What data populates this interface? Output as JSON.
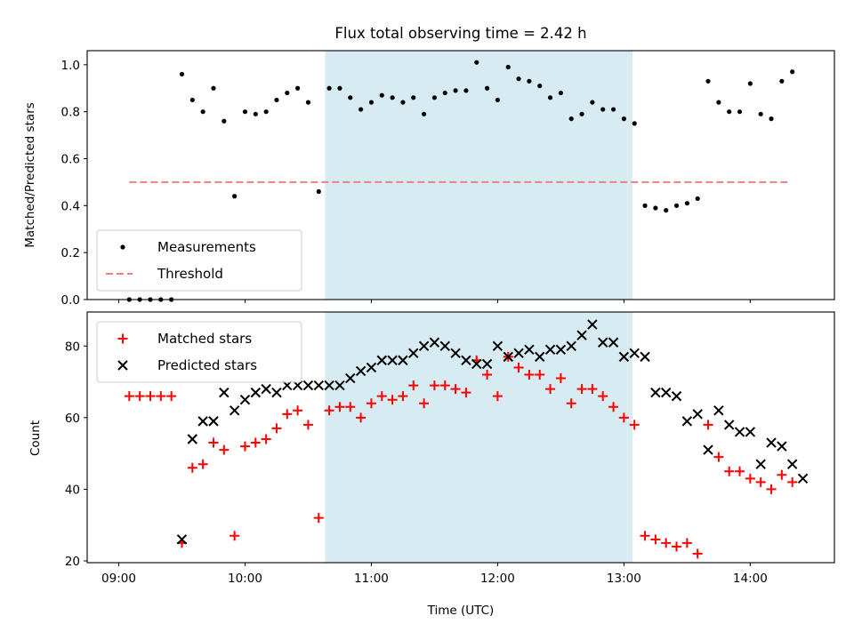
{
  "chart_data": [
    {
      "type": "scatter",
      "title": "Flux total observing time = 2.42 h",
      "xlabel": "",
      "ylabel": "Matched/Predicted stars",
      "ylim": [
        0,
        1.06
      ],
      "yticks": [
        0.0,
        0.2,
        0.4,
        0.6,
        0.8,
        1.0
      ],
      "ytick_labels": [
        "0.0",
        "0.2",
        "0.4",
        "0.6",
        "0.8",
        "1.0"
      ],
      "xlim": [
        "08:45",
        "14:40"
      ],
      "xticks": [
        "09:00",
        "10:00",
        "11:00",
        "12:00",
        "13:00",
        "14:00"
      ],
      "shaded_interval": {
        "start": "10:38",
        "end": "13:04",
        "color": "#add8e6",
        "opacity": 0.5
      },
      "legend": {
        "placement": "lower-left",
        "entries": [
          "Measurements",
          "Threshold"
        ]
      },
      "threshold": {
        "name": "Threshold",
        "y": 0.5,
        "x_range": [
          "09:05",
          "14:18"
        ],
        "color": "#f08080",
        "style": "dashed"
      },
      "series": [
        {
          "name": "Measurements",
          "marker": "dot",
          "color": "#000000",
          "points": [
            [
              "09:05",
              0.0
            ],
            [
              "09:10",
              0.0
            ],
            [
              "09:15",
              0.0
            ],
            [
              "09:20",
              0.0
            ],
            [
              "09:25",
              0.0
            ],
            [
              "09:30",
              0.96
            ],
            [
              "09:35",
              0.85
            ],
            [
              "09:40",
              0.8
            ],
            [
              "09:45",
              0.9
            ],
            [
              "09:50",
              0.76
            ],
            [
              "09:55",
              0.44
            ],
            [
              "10:00",
              0.8
            ],
            [
              "10:05",
              0.79
            ],
            [
              "10:10",
              0.8
            ],
            [
              "10:15",
              0.85
            ],
            [
              "10:20",
              0.88
            ],
            [
              "10:25",
              0.9
            ],
            [
              "10:30",
              0.84
            ],
            [
              "10:35",
              0.46
            ],
            [
              "10:40",
              0.9
            ],
            [
              "10:45",
              0.9
            ],
            [
              "10:50",
              0.86
            ],
            [
              "10:55",
              0.81
            ],
            [
              "11:00",
              0.84
            ],
            [
              "11:05",
              0.87
            ],
            [
              "11:10",
              0.86
            ],
            [
              "11:15",
              0.84
            ],
            [
              "11:20",
              0.86
            ],
            [
              "11:25",
              0.79
            ],
            [
              "11:30",
              0.86
            ],
            [
              "11:35",
              0.88
            ],
            [
              "11:40",
              0.89
            ],
            [
              "11:45",
              0.89
            ],
            [
              "11:50",
              1.01
            ],
            [
              "11:55",
              0.9
            ],
            [
              "12:00",
              0.85
            ],
            [
              "12:05",
              0.99
            ],
            [
              "12:10",
              0.94
            ],
            [
              "12:15",
              0.93
            ],
            [
              "12:20",
              0.91
            ],
            [
              "12:25",
              0.86
            ],
            [
              "12:30",
              0.88
            ],
            [
              "12:35",
              0.77
            ],
            [
              "12:40",
              0.79
            ],
            [
              "12:45",
              0.84
            ],
            [
              "12:50",
              0.81
            ],
            [
              "12:55",
              0.81
            ],
            [
              "13:00",
              0.77
            ],
            [
              "13:05",
              0.75
            ],
            [
              "13:10",
              0.4
            ],
            [
              "13:15",
              0.39
            ],
            [
              "13:20",
              0.38
            ],
            [
              "13:25",
              0.4
            ],
            [
              "13:30",
              0.41
            ],
            [
              "13:35",
              0.43
            ],
            [
              "13:40",
              0.93
            ],
            [
              "13:45",
              0.84
            ],
            [
              "13:50",
              0.8
            ],
            [
              "13:55",
              0.8
            ],
            [
              "14:00",
              0.92
            ],
            [
              "14:05",
              0.79
            ],
            [
              "14:10",
              0.77
            ],
            [
              "14:15",
              0.93
            ],
            [
              "14:20",
              0.97
            ]
          ]
        }
      ]
    },
    {
      "type": "scatter",
      "title": "",
      "xlabel": "Time (UTC)",
      "ylabel": "Count",
      "ylim": [
        19.5,
        89.5
      ],
      "yticks": [
        20,
        40,
        60,
        80
      ],
      "ytick_labels": [
        "20",
        "40",
        "60",
        "80"
      ],
      "xlim": [
        "08:45",
        "14:40"
      ],
      "xticks": [
        "09:00",
        "10:00",
        "11:00",
        "12:00",
        "13:00",
        "14:00"
      ],
      "xtick_labels": [
        "09:00",
        "10:00",
        "11:00",
        "12:00",
        "13:00",
        "14:00"
      ],
      "shaded_interval": {
        "start": "10:38",
        "end": "13:04",
        "color": "#add8e6",
        "opacity": 0.5
      },
      "legend": {
        "placement": "upper-left",
        "entries": [
          "Matched stars",
          "Predicted stars"
        ]
      },
      "series": [
        {
          "name": "Matched stars",
          "marker": "plus",
          "color": "#ff0000",
          "points": [
            [
              "09:05",
              66
            ],
            [
              "09:10",
              66
            ],
            [
              "09:15",
              66
            ],
            [
              "09:20",
              66
            ],
            [
              "09:25",
              66
            ],
            [
              "09:30",
              25
            ],
            [
              "09:35",
              46
            ],
            [
              "09:40",
              47
            ],
            [
              "09:45",
              53
            ],
            [
              "09:50",
              51
            ],
            [
              "09:55",
              27
            ],
            [
              "10:00",
              52
            ],
            [
              "10:05",
              53
            ],
            [
              "10:10",
              54
            ],
            [
              "10:15",
              57
            ],
            [
              "10:20",
              61
            ],
            [
              "10:25",
              62
            ],
            [
              "10:30",
              58
            ],
            [
              "10:35",
              32
            ],
            [
              "10:40",
              62
            ],
            [
              "10:45",
              63
            ],
            [
              "10:50",
              63
            ],
            [
              "10:55",
              60
            ],
            [
              "11:00",
              64
            ],
            [
              "11:05",
              66
            ],
            [
              "11:10",
              65
            ],
            [
              "11:15",
              66
            ],
            [
              "11:20",
              69
            ],
            [
              "11:25",
              64
            ],
            [
              "11:30",
              69
            ],
            [
              "11:35",
              69
            ],
            [
              "11:40",
              68
            ],
            [
              "11:45",
              67
            ],
            [
              "11:50",
              76
            ],
            [
              "11:55",
              72
            ],
            [
              "12:00",
              66
            ],
            [
              "12:05",
              77
            ],
            [
              "12:10",
              74
            ],
            [
              "12:15",
              72
            ],
            [
              "12:20",
              72
            ],
            [
              "12:25",
              68
            ],
            [
              "12:30",
              71
            ],
            [
              "12:35",
              64
            ],
            [
              "12:40",
              68
            ],
            [
              "12:45",
              68
            ],
            [
              "12:50",
              66
            ],
            [
              "12:55",
              63
            ],
            [
              "13:00",
              60
            ],
            [
              "13:05",
              58
            ],
            [
              "13:10",
              27
            ],
            [
              "13:15",
              26
            ],
            [
              "13:20",
              25
            ],
            [
              "13:25",
              24
            ],
            [
              "13:30",
              25
            ],
            [
              "13:35",
              22
            ],
            [
              "13:40",
              58
            ],
            [
              "13:45",
              49
            ],
            [
              "13:50",
              45
            ],
            [
              "13:55",
              45
            ],
            [
              "14:00",
              43
            ],
            [
              "14:05",
              42
            ],
            [
              "14:10",
              40
            ],
            [
              "14:15",
              44
            ],
            [
              "14:20",
              42
            ]
          ]
        },
        {
          "name": "Predicted stars",
          "marker": "x",
          "color": "#000000",
          "points": [
            [
              "09:30",
              26
            ],
            [
              "09:35",
              54
            ],
            [
              "09:40",
              59
            ],
            [
              "09:45",
              59
            ],
            [
              "09:50",
              67
            ],
            [
              "09:55",
              62
            ],
            [
              "10:00",
              65
            ],
            [
              "10:05",
              67
            ],
            [
              "10:10",
              68
            ],
            [
              "10:15",
              67
            ],
            [
              "10:20",
              69
            ],
            [
              "10:25",
              69
            ],
            [
              "10:30",
              69
            ],
            [
              "10:35",
              69
            ],
            [
              "10:40",
              69
            ],
            [
              "10:45",
              69
            ],
            [
              "10:50",
              71
            ],
            [
              "10:55",
              73
            ],
            [
              "11:00",
              74
            ],
            [
              "11:05",
              76
            ],
            [
              "11:10",
              76
            ],
            [
              "11:15",
              76
            ],
            [
              "11:20",
              78
            ],
            [
              "11:25",
              80
            ],
            [
              "11:30",
              81
            ],
            [
              "11:35",
              80
            ],
            [
              "11:40",
              78
            ],
            [
              "11:45",
              76
            ],
            [
              "11:50",
              75
            ],
            [
              "11:55",
              75
            ],
            [
              "12:00",
              80
            ],
            [
              "12:05",
              77
            ],
            [
              "12:10",
              78
            ],
            [
              "12:15",
              79
            ],
            [
              "12:20",
              77
            ],
            [
              "12:25",
              79
            ],
            [
              "12:30",
              79
            ],
            [
              "12:35",
              80
            ],
            [
              "12:40",
              83
            ],
            [
              "12:45",
              86
            ],
            [
              "12:50",
              81
            ],
            [
              "12:55",
              81
            ],
            [
              "13:00",
              77
            ],
            [
              "13:05",
              78
            ],
            [
              "13:10",
              77
            ],
            [
              "13:15",
              67
            ],
            [
              "13:20",
              67
            ],
            [
              "13:25",
              66
            ],
            [
              "13:30",
              59
            ],
            [
              "13:35",
              61
            ],
            [
              "13:40",
              51
            ],
            [
              "13:45",
              62
            ],
            [
              "13:50",
              58
            ],
            [
              "13:55",
              56
            ],
            [
              "14:00",
              56
            ],
            [
              "14:05",
              47
            ],
            [
              "14:10",
              53
            ],
            [
              "14:15",
              52
            ],
            [
              "14:20",
              47
            ],
            [
              "14:25",
              43
            ]
          ]
        }
      ]
    }
  ]
}
